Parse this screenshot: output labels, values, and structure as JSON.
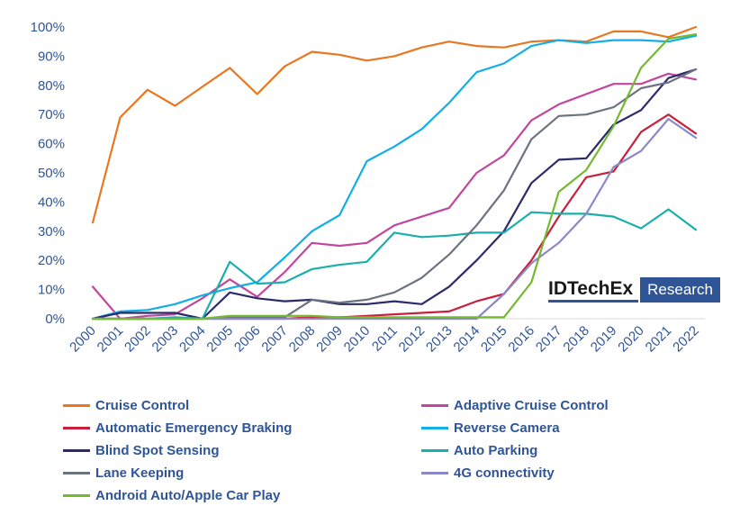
{
  "chart_data": {
    "type": "line",
    "title": "",
    "xlabel": "",
    "ylabel": "",
    "ylim": [
      0,
      100
    ],
    "y_ticks": [
      "0%",
      "10%",
      "20%",
      "30%",
      "40%",
      "50%",
      "60%",
      "70%",
      "80%",
      "90%",
      "100%"
    ],
    "categories": [
      "2000",
      "2001",
      "2002",
      "2003",
      "2004",
      "2005",
      "2006",
      "2007",
      "2008",
      "2009",
      "2010",
      "2011",
      "2012",
      "2013",
      "2014",
      "2015",
      "2016",
      "2017",
      "2018",
      "2019",
      "2020",
      "2021",
      "2022"
    ],
    "series": [
      {
        "name": "Cruise Control",
        "color": "#e87722",
        "values": [
          33,
          69,
          78.5,
          73,
          79.5,
          86,
          77,
          86.5,
          91.5,
          90.5,
          88.5,
          90,
          93,
          95,
          93.5,
          93,
          95,
          95.5,
          95,
          98.5,
          98.5,
          96.5,
          100
        ]
      },
      {
        "name": "Adaptive Cruise Control",
        "color": "#c0469e",
        "values": [
          11,
          0,
          1,
          1.5,
          7,
          13.5,
          7.5,
          16,
          26,
          25,
          26,
          32,
          35,
          38,
          50,
          56,
          68,
          73.5,
          77,
          80.5,
          80.5,
          84,
          82
        ]
      },
      {
        "name": "Automatic Emergency Braking",
        "color": "#c8203c",
        "values": [
          0,
          0,
          0,
          0,
          0,
          0,
          0,
          0,
          0.5,
          0.5,
          1,
          1.5,
          2,
          2.5,
          6,
          8.5,
          20,
          35,
          48.5,
          50.5,
          64,
          70,
          63.5
        ]
      },
      {
        "name": "Reverse Camera",
        "color": "#12aee8",
        "values": [
          0,
          2.5,
          3,
          5,
          8,
          10.5,
          12.5,
          21,
          30,
          35.5,
          54,
          59,
          65,
          74,
          84.5,
          87.5,
          93.5,
          95.5,
          94.5,
          95.5,
          95.5,
          95,
          97
        ]
      },
      {
        "name": "Blind Spot Sensing",
        "color": "#2b2a6b",
        "values": [
          0,
          2,
          2,
          2,
          0,
          9,
          7,
          6,
          6.5,
          5,
          5,
          6,
          5,
          11,
          20,
          30,
          46.5,
          54.5,
          55,
          66.5,
          71.5,
          82.5,
          85.5
        ]
      },
      {
        "name": "Auto Parking",
        "color": "#1aafaa",
        "values": [
          0,
          0,
          0,
          0.5,
          0,
          19.5,
          12,
          12.5,
          17,
          18.5,
          19.5,
          29.5,
          28,
          28.5,
          29.5,
          29.5,
          36.5,
          36,
          36,
          35,
          31,
          37.5,
          30.5
        ]
      },
      {
        "name": "Lane Keeping",
        "color": "#6b7280",
        "values": [
          0,
          0,
          0,
          0,
          0,
          0.5,
          0.5,
          0.5,
          6.5,
          5.5,
          6.5,
          9,
          14,
          22,
          32,
          44,
          61.5,
          69.5,
          70,
          72.5,
          79,
          81,
          85.5
        ]
      },
      {
        "name": "4G connectivity",
        "color": "#8a88c8",
        "values": [
          0,
          0,
          0,
          0,
          0,
          0,
          0,
          0,
          0,
          0,
          0,
          0,
          0,
          0,
          0,
          8.5,
          19,
          26,
          36,
          52,
          57.5,
          68.5,
          62
        ]
      },
      {
        "name": "Android Auto/Apple Car Play",
        "color": "#75b832",
        "values": [
          0,
          0,
          0,
          0,
          0,
          1,
          1,
          1,
          1,
          0.5,
          0.5,
          0.5,
          0.5,
          0.5,
          0.5,
          0.5,
          12.5,
          43.5,
          51,
          66,
          86,
          96,
          97.5
        ]
      }
    ]
  },
  "logo": {
    "main": "IDTechEx",
    "sub": "Research"
  }
}
